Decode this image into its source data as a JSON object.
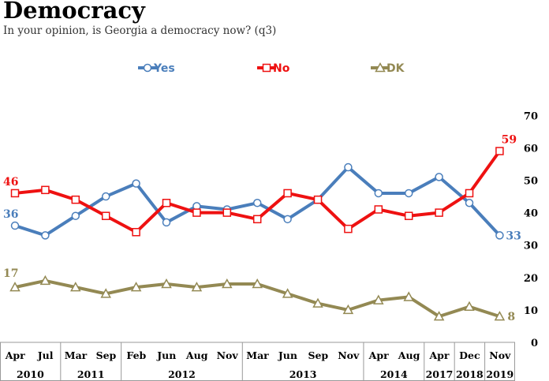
{
  "header": {
    "title": "Democracy",
    "subtitle": "In your opinion, is Georgia a democracy now? (q3)"
  },
  "chart_data": {
    "type": "line",
    "title": "Democracy",
    "subtitle": "In your opinion, is Georgia a democracy now? (q3)",
    "categories": [
      "Apr 2010",
      "Jul 2010",
      "Mar 2011",
      "Sep 2011",
      "Feb 2012",
      "Jun 2012",
      "Aug 2012",
      "Nov 2012",
      "Mar 2013",
      "Jun 2013",
      "Sep 2013",
      "Nov 2013",
      "Apr 2014",
      "Aug 2014",
      "Apr 2017",
      "Dec 2018",
      "Nov 2019"
    ],
    "month_labels": [
      "Apr",
      "Jul",
      "Mar",
      "Sep",
      "Feb",
      "Jun",
      "Aug",
      "Nov",
      "Mar",
      "Jun",
      "Sep",
      "Nov",
      "Apr",
      "Aug",
      "Apr",
      "Dec",
      "Nov"
    ],
    "year_groups": [
      {
        "label": "2010",
        "span": 2
      },
      {
        "label": "2011",
        "span": 2
      },
      {
        "label": "2012",
        "span": 4
      },
      {
        "label": "2013",
        "span": 4
      },
      {
        "label": "2014",
        "span": 2
      },
      {
        "label": "2017",
        "span": 1
      },
      {
        "label": "2018",
        "span": 1
      },
      {
        "label": "2019",
        "span": 1
      }
    ],
    "series": [
      {
        "name": "Yes",
        "color": "#4a7ebb",
        "marker": "circle",
        "values": [
          36,
          33,
          39,
          45,
          49,
          37,
          42,
          41,
          43,
          38,
          44,
          54,
          46,
          46,
          51,
          43,
          33
        ],
        "end_labels": [
          "36",
          "33"
        ]
      },
      {
        "name": "No",
        "color": "#ee1111",
        "marker": "square",
        "values": [
          46,
          47,
          44,
          39,
          34,
          43,
          40,
          40,
          38,
          46,
          44,
          35,
          41,
          39,
          40,
          46,
          59
        ],
        "end_labels": [
          "46",
          "59"
        ]
      },
      {
        "name": "DK",
        "color": "#938953",
        "marker": "triangle",
        "values": [
          17,
          19,
          17,
          15,
          17,
          18,
          17,
          18,
          18,
          15,
          12,
          10,
          13,
          14,
          8,
          11,
          8
        ],
        "end_labels": [
          "17",
          "8"
        ]
      }
    ],
    "y_ticks": [
      "0",
      "10",
      "20",
      "30",
      "40",
      "50",
      "60",
      "70"
    ],
    "ylim": [
      0,
      70
    ],
    "y_axis_side": "right",
    "legend_position": "top",
    "grid": false
  }
}
